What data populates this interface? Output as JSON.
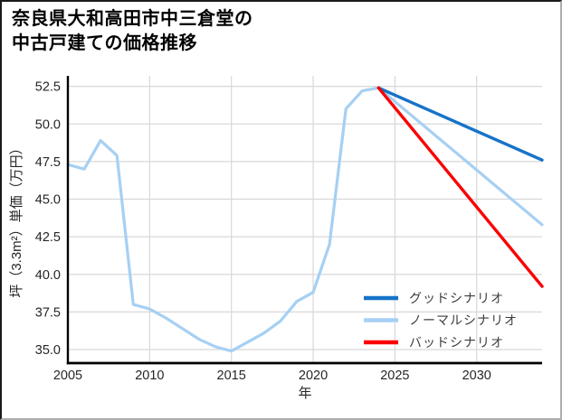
{
  "figure": {
    "title_line1": "奈良県大和高田市中三倉堂の",
    "title_line2": "中古戸建ての価格推移"
  },
  "chart_data": {
    "type": "line",
    "title": "奈良県大和高田市中三倉堂の中古戸建ての価格推移",
    "xlabel": "年",
    "ylabel": "坪（3.3m²）単価（万円）",
    "xlim": [
      2005,
      2034
    ],
    "ylim": [
      34.1,
      53.2
    ],
    "x_ticks": [
      2005,
      2010,
      2015,
      2020,
      2025,
      2030
    ],
    "y_ticks": [
      "35.0",
      "37.5",
      "40.0",
      "42.5",
      "45.0",
      "47.5",
      "50.0",
      "52.5"
    ],
    "grid": true,
    "legend_position": "lower-right",
    "series": [
      {
        "name": "ノーマルシナリオ",
        "color": "#a6d0f3",
        "width": 3.2,
        "x": [
          2005,
          2006,
          2007,
          2008,
          2009,
          2010,
          2011,
          2012,
          2013,
          2014,
          2015,
          2016,
          2017,
          2018,
          2019,
          2020,
          2021,
          2022,
          2023,
          2024,
          2034
        ],
        "y": [
          47.3,
          47.0,
          48.9,
          47.9,
          38.0,
          37.7,
          37.1,
          36.4,
          35.7,
          35.2,
          34.9,
          35.5,
          36.1,
          36.9,
          38.2,
          38.8,
          42.0,
          51.0,
          52.2,
          52.4,
          43.3
        ]
      },
      {
        "name": "グッドシナリオ",
        "color": "#1673c8",
        "width": 3.4,
        "x": [
          2024,
          2034
        ],
        "y": [
          52.4,
          47.6
        ]
      },
      {
        "name": "バッドシナリオ",
        "color": "#fb0000",
        "width": 3.4,
        "x": [
          2024,
          2034
        ],
        "y": [
          52.4,
          39.2
        ]
      }
    ],
    "legend": [
      {
        "label": "グッドシナリオ",
        "color": "#1673c8"
      },
      {
        "label": "ノーマルシナリオ",
        "color": "#a6d0f3"
      },
      {
        "label": "バッドシナリオ",
        "color": "#fb0000"
      }
    ],
    "style": {
      "grid_color": "#d8d8d8",
      "spine_color": "#000000",
      "tick_label_color": "#262626",
      "axis_label_color": "#262626",
      "legend_text_color": "#3d3d3d"
    }
  }
}
